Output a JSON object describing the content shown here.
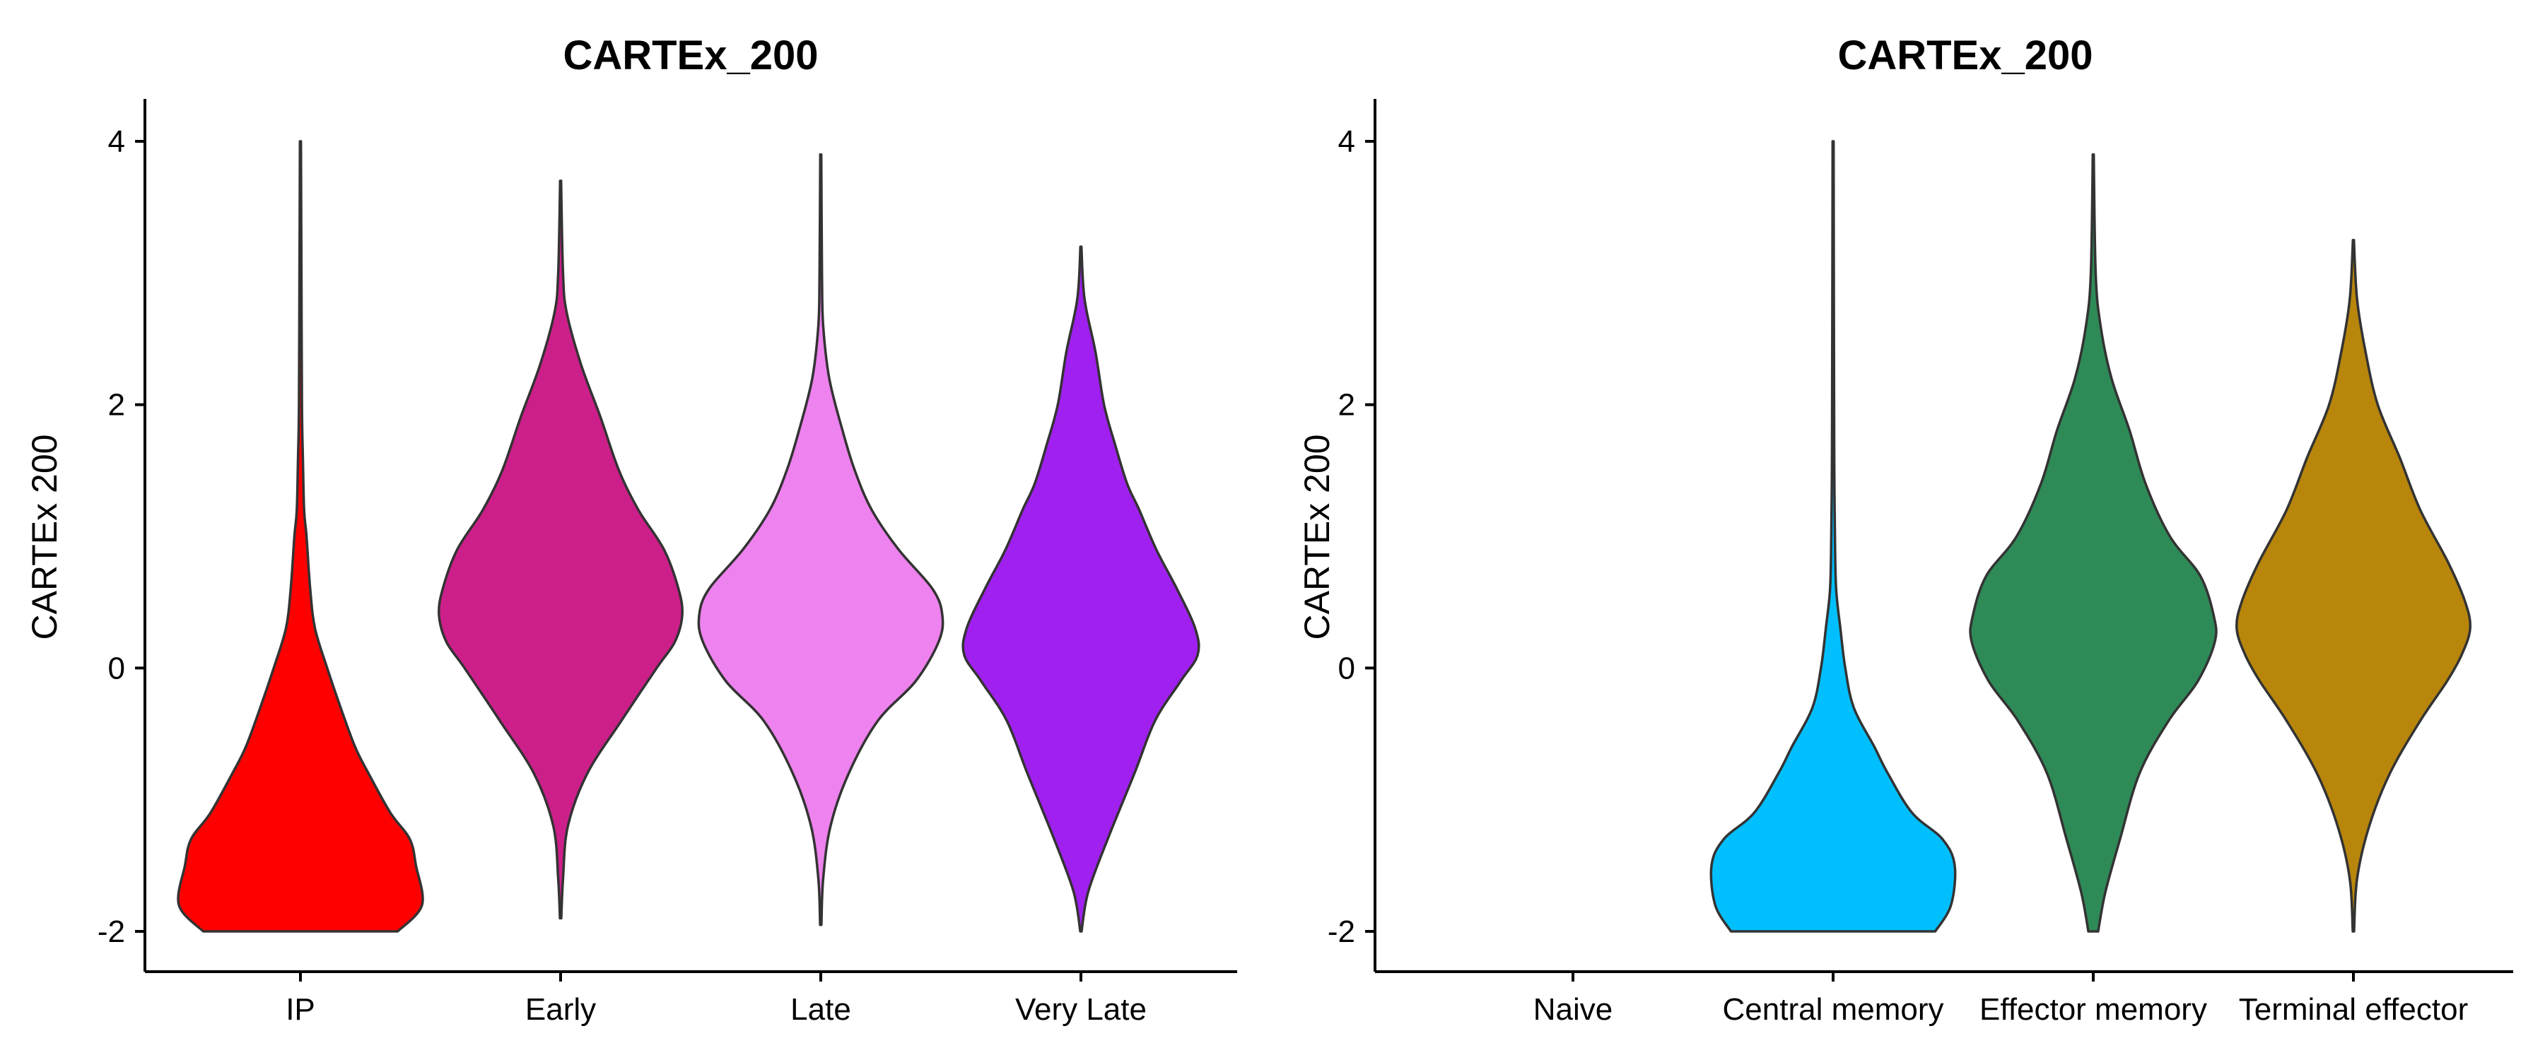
{
  "chart_data": [
    {
      "type": "violin",
      "title": "CARTEx_200",
      "xlabel": "",
      "ylabel": "CARTEx 200",
      "ylim": [
        -2.3,
        4.3
      ],
      "yticks": [
        "-2",
        "0",
        "2",
        "4"
      ],
      "ytick_values": [
        -2,
        0,
        2,
        4
      ],
      "grid": false,
      "categories": [
        "IP",
        "Early",
        "Late",
        "Very Late"
      ],
      "series": [
        {
          "category": "IP",
          "color": "#FF0000",
          "min": -2.0,
          "max": 4.0,
          "density": [
            [
              -2.0,
              0.8
            ],
            [
              -1.8,
              1.0
            ],
            [
              -1.5,
              0.95
            ],
            [
              -1.3,
              0.9
            ],
            [
              -1.1,
              0.74
            ],
            [
              -0.8,
              0.56
            ],
            [
              -0.6,
              0.45
            ],
            [
              -0.3,
              0.33
            ],
            [
              0.0,
              0.22
            ],
            [
              0.3,
              0.12
            ],
            [
              0.6,
              0.08
            ],
            [
              1.0,
              0.05
            ],
            [
              1.2,
              0.03
            ],
            [
              1.6,
              0.02
            ],
            [
              2.0,
              0.012
            ],
            [
              3.0,
              0.008
            ],
            [
              4.0,
              0.004
            ]
          ]
        },
        {
          "category": "Early",
          "color": "#CD1F8A",
          "min": -1.9,
          "max": 3.7,
          "density": [
            [
              -1.9,
              0.005
            ],
            [
              -1.6,
              0.02
            ],
            [
              -1.2,
              0.06
            ],
            [
              -0.8,
              0.22
            ],
            [
              -0.4,
              0.5
            ],
            [
              0.0,
              0.79
            ],
            [
              0.2,
              0.94
            ],
            [
              0.4,
              1.0
            ],
            [
              0.6,
              0.97
            ],
            [
              0.9,
              0.85
            ],
            [
              1.2,
              0.64
            ],
            [
              1.5,
              0.48
            ],
            [
              1.9,
              0.33
            ],
            [
              2.3,
              0.17
            ],
            [
              2.7,
              0.05
            ],
            [
              3.0,
              0.02
            ],
            [
              3.7,
              0.004
            ]
          ]
        },
        {
          "category": "Late",
          "color": "#EE82EE",
          "min": -1.95,
          "max": 3.9,
          "density": [
            [
              -1.95,
              0.005
            ],
            [
              -1.6,
              0.02
            ],
            [
              -1.2,
              0.08
            ],
            [
              -0.8,
              0.23
            ],
            [
              -0.4,
              0.47
            ],
            [
              -0.1,
              0.78
            ],
            [
              0.2,
              0.97
            ],
            [
              0.4,
              1.0
            ],
            [
              0.6,
              0.92
            ],
            [
              0.9,
              0.64
            ],
            [
              1.2,
              0.42
            ],
            [
              1.5,
              0.28
            ],
            [
              1.8,
              0.18
            ],
            [
              2.2,
              0.07
            ],
            [
              2.6,
              0.02
            ],
            [
              3.0,
              0.01
            ],
            [
              3.9,
              0.004
            ]
          ]
        },
        {
          "category": "Very Late",
          "color": "#A020F0",
          "min": -2.0,
          "max": 3.2,
          "density": [
            [
              -2.0,
              0.005
            ],
            [
              -1.7,
              0.06
            ],
            [
              -1.3,
              0.22
            ],
            [
              -0.8,
              0.44
            ],
            [
              -0.4,
              0.61
            ],
            [
              -0.1,
              0.82
            ],
            [
              0.1,
              0.96
            ],
            [
              0.3,
              0.94
            ],
            [
              0.6,
              0.79
            ],
            [
              0.9,
              0.62
            ],
            [
              1.2,
              0.48
            ],
            [
              1.4,
              0.38
            ],
            [
              1.7,
              0.28
            ],
            [
              2.0,
              0.19
            ],
            [
              2.4,
              0.12
            ],
            [
              2.8,
              0.03
            ],
            [
              3.2,
              0.004
            ]
          ]
        }
      ]
    },
    {
      "type": "violin",
      "title": "CARTEx_200",
      "xlabel": "",
      "ylabel": "CARTEx 200",
      "ylim": [
        -2.3,
        4.3
      ],
      "yticks": [
        "-2",
        "0",
        "2",
        "4"
      ],
      "ytick_values": [
        -2,
        0,
        2,
        4
      ],
      "grid": false,
      "categories": [
        "Naive",
        "Central memory",
        "Effector memory",
        "Terminal effector"
      ],
      "series": [
        {
          "category": "Naive",
          "color": "#FFFFFF",
          "min": null,
          "max": null,
          "density": []
        },
        {
          "category": "Central memory",
          "color": "#00BFFF",
          "min": -2.0,
          "max": 4.0,
          "density": [
            [
              -2.0,
              0.84
            ],
            [
              -1.8,
              0.97
            ],
            [
              -1.5,
              1.0
            ],
            [
              -1.3,
              0.9
            ],
            [
              -1.1,
              0.65
            ],
            [
              -0.8,
              0.45
            ],
            [
              -0.6,
              0.34
            ],
            [
              -0.3,
              0.17
            ],
            [
              0.0,
              0.1
            ],
            [
              0.3,
              0.06
            ],
            [
              0.6,
              0.025
            ],
            [
              1.0,
              0.015
            ],
            [
              1.5,
              0.01
            ],
            [
              2.0,
              0.008
            ],
            [
              3.0,
              0.006
            ],
            [
              4.0,
              0.004
            ]
          ]
        },
        {
          "category": "Effector memory",
          "color": "#2E8B57",
          "min": -2.0,
          "max": 3.9,
          "density": [
            [
              -2.0,
              0.04
            ],
            [
              -1.7,
              0.1
            ],
            [
              -1.3,
              0.22
            ],
            [
              -0.8,
              0.38
            ],
            [
              -0.4,
              0.62
            ],
            [
              -0.1,
              0.86
            ],
            [
              0.2,
              1.0
            ],
            [
              0.4,
              0.99
            ],
            [
              0.7,
              0.88
            ],
            [
              1.0,
              0.63
            ],
            [
              1.4,
              0.43
            ],
            [
              1.8,
              0.3
            ],
            [
              2.2,
              0.15
            ],
            [
              2.6,
              0.06
            ],
            [
              3.0,
              0.02
            ],
            [
              3.9,
              0.004
            ]
          ]
        },
        {
          "category": "Terminal effector",
          "color": "#B8860B",
          "min": -2.0,
          "max": 3.25,
          "density": [
            [
              -2.0,
              0.005
            ],
            [
              -1.6,
              0.03
            ],
            [
              -1.2,
              0.13
            ],
            [
              -0.8,
              0.3
            ],
            [
              -0.4,
              0.55
            ],
            [
              -0.1,
              0.77
            ],
            [
              0.1,
              0.89
            ],
            [
              0.3,
              0.96
            ],
            [
              0.5,
              0.92
            ],
            [
              0.8,
              0.78
            ],
            [
              1.2,
              0.55
            ],
            [
              1.6,
              0.38
            ],
            [
              2.0,
              0.2
            ],
            [
              2.4,
              0.1
            ],
            [
              2.8,
              0.03
            ],
            [
              3.25,
              0.004
            ]
          ]
        }
      ]
    }
  ]
}
